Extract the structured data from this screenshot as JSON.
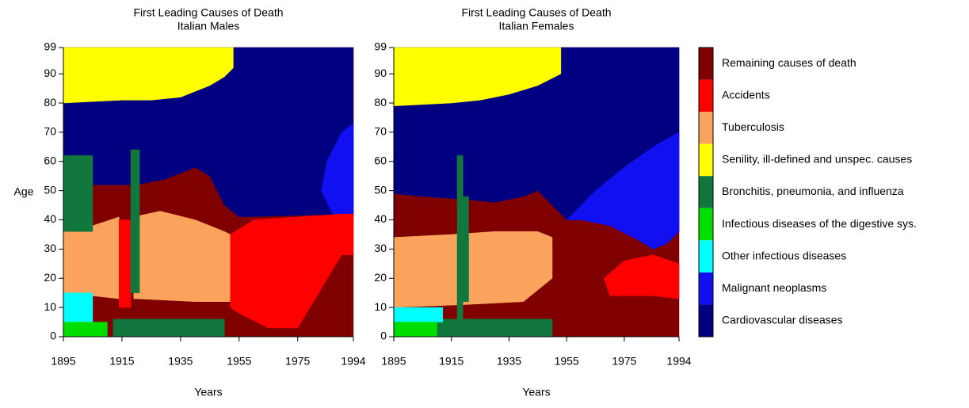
{
  "chart_data": {
    "type": "region-map",
    "causes": [
      {
        "name": "Remaining causes of death",
        "color": "#800000"
      },
      {
        "name": "Accidents",
        "color": "#ff0000"
      },
      {
        "name": "Tuberculosis",
        "color": "#fba35c"
      },
      {
        "name": "Senility, ill-defined and unspec. causes",
        "color": "#ffff00"
      },
      {
        "name": "Bronchitis, pneumonia, and influenza",
        "color": "#11773d"
      },
      {
        "name": "Infectious diseases of the digestive sys.",
        "color": "#00dd00"
      },
      {
        "name": "Other infectious diseases",
        "color": "#00ffff"
      },
      {
        "name": "Malignant neoplasms",
        "color": "#1010f0"
      },
      {
        "name": "Cardiovascular diseases",
        "color": "#000080"
      }
    ],
    "panels": [
      {
        "title": "First Leading Causes of Death",
        "subtitle": "Italian Males",
        "xlabel": "Years",
        "ylabel": "Age",
        "xlim": [
          1895,
          1994
        ],
        "ylim": [
          0,
          99
        ],
        "xticks": [
          1895,
          1915,
          1935,
          1955,
          1975,
          1994
        ],
        "yticks": [
          0,
          10,
          20,
          30,
          40,
          50,
          60,
          70,
          80,
          90,
          99
        ],
        "regions": [
          {
            "cause": 0,
            "x": [
              1895,
              1994,
              1994,
              1895
            ],
            "y": [
              0,
              0,
              99,
              99
            ]
          },
          {
            "cause": 8,
            "x": [
              1895,
              1994,
              1994,
              1955,
              1950,
              1945,
              1940,
              1930,
              1920,
              1905,
              1895
            ],
            "y": [
              99,
              99,
              42,
              41,
              45,
              55,
              58,
              54,
              52,
              52,
              52
            ]
          },
          {
            "cause": 3,
            "x": [
              1895,
              1953,
              1953,
              1950,
              1945,
              1940,
              1935,
              1925,
              1915,
              1895
            ],
            "y": [
              99,
              99,
              92,
              89,
              86,
              84,
              82,
              81,
              81,
              80
            ]
          },
          {
            "cause": 7,
            "x": [
              1985,
              1990,
              1994,
              1994,
              1987,
              1983
            ],
            "y": [
              60,
              70,
              73,
              41,
              42,
              50
            ]
          },
          {
            "cause": 2,
            "x": [
              1895,
              1905,
              1914,
              1914,
              1905,
              1895
            ],
            "y": [
              36,
              38,
              41,
              13,
              14,
              15
            ]
          },
          {
            "cause": 2,
            "x": [
              1919,
              1928,
              1940,
              1950,
              1952,
              1952,
              1940,
              1920,
              1919
            ],
            "y": [
              41,
              43,
              40,
              36,
              35,
              12,
              12,
              13,
              13
            ]
          },
          {
            "cause": 1,
            "x": [
              1914,
              1918,
              1918,
              1914
            ],
            "y": [
              10,
              10,
              40,
              40
            ]
          },
          {
            "cause": 1,
            "x": [
              1952,
              1960,
              1975,
              1990,
              1994,
              1994,
              1990,
              1975,
              1965,
              1955,
              1952
            ],
            "y": [
              35,
              40,
              41,
              42,
              42,
              28,
              28,
              3,
              3,
              8,
              10
            ]
          },
          {
            "cause": 4,
            "x": [
              1895,
              1905,
              1905,
              1895
            ],
            "y": [
              36,
              36,
              62,
              62
            ]
          },
          {
            "cause": 4,
            "x": [
              1918,
              1921,
              1921,
              1918
            ],
            "y": [
              15,
              15,
              64,
              64
            ]
          },
          {
            "cause": 4,
            "x": [
              1912,
              1950,
              1950,
              1912
            ],
            "y": [
              0,
              0,
              6,
              6
            ]
          },
          {
            "cause": 6,
            "x": [
              1895,
              1905,
              1905,
              1895
            ],
            "y": [
              5,
              5,
              15,
              15
            ]
          },
          {
            "cause": 5,
            "x": [
              1895,
              1910,
              1910,
              1895
            ],
            "y": [
              0,
              0,
              5,
              5
            ]
          }
        ]
      },
      {
        "title": "First Leading Causes of Death",
        "subtitle": "Italian Females",
        "xlabel": "Years",
        "xlim": [
          1895,
          1994
        ],
        "ylim": [
          0,
          99
        ],
        "xticks": [
          1895,
          1915,
          1935,
          1955,
          1975,
          1994
        ],
        "yticks": [
          0,
          10,
          20,
          30,
          40,
          50,
          60,
          70,
          80,
          90,
          99
        ],
        "regions": [
          {
            "cause": 0,
            "x": [
              1895,
              1994,
              1994,
              1895
            ],
            "y": [
              0,
              0,
              99,
              99
            ]
          },
          {
            "cause": 8,
            "x": [
              1895,
              1994,
              1994,
              1990,
              1985,
              1980,
              1970,
              1960,
              1955,
              1950,
              1945,
              1940,
              1930,
              1920,
              1905,
              1895
            ],
            "y": [
              99,
              99,
              36,
              32,
              30,
              33,
              40,
              40,
              40,
              45,
              50,
              48,
              46,
              47,
              48,
              49
            ]
          },
          {
            "cause": 3,
            "x": [
              1895,
              1953,
              1953,
              1945,
              1935,
              1925,
              1915,
              1895
            ],
            "y": [
              99,
              99,
              90,
              86,
              83,
              81,
              80,
              79
            ]
          },
          {
            "cause": 7,
            "x": [
              1955,
              1965,
              1975,
              1985,
              1994,
              1994,
              1990,
              1985,
              1980,
              1970,
              1960
            ],
            "y": [
              40,
              50,
              58,
              65,
              70,
              36,
              32,
              30,
              33,
              38,
              40
            ]
          },
          {
            "cause": 2,
            "x": [
              1895,
              1915,
              1930,
              1945,
              1950,
              1950,
              1940,
              1920,
              1895
            ],
            "y": [
              34,
              35,
              36,
              36,
              34,
              20,
              12,
              11,
              10
            ]
          },
          {
            "cause": 1,
            "x": [
              1968,
              1975,
              1985,
              1994,
              1994,
              1985,
              1970
            ],
            "y": [
              20,
              26,
              28,
              25,
              13,
              14,
              14
            ]
          },
          {
            "cause": 4,
            "x": [
              1917,
              1919,
              1919,
              1917
            ],
            "y": [
              5,
              5,
              62,
              62
            ]
          },
          {
            "cause": 4,
            "x": [
              1918,
              1921,
              1921,
              1918
            ],
            "y": [
              12,
              12,
              48,
              48
            ]
          },
          {
            "cause": 4,
            "x": [
              1910,
              1950,
              1950,
              1910
            ],
            "y": [
              0,
              0,
              6,
              6
            ]
          },
          {
            "cause": 6,
            "x": [
              1895,
              1912,
              1912,
              1895
            ],
            "y": [
              5,
              5,
              10,
              10
            ]
          },
          {
            "cause": 5,
            "x": [
              1895,
              1910,
              1910,
              1895
            ],
            "y": [
              0,
              0,
              5,
              5
            ]
          }
        ]
      }
    ]
  }
}
